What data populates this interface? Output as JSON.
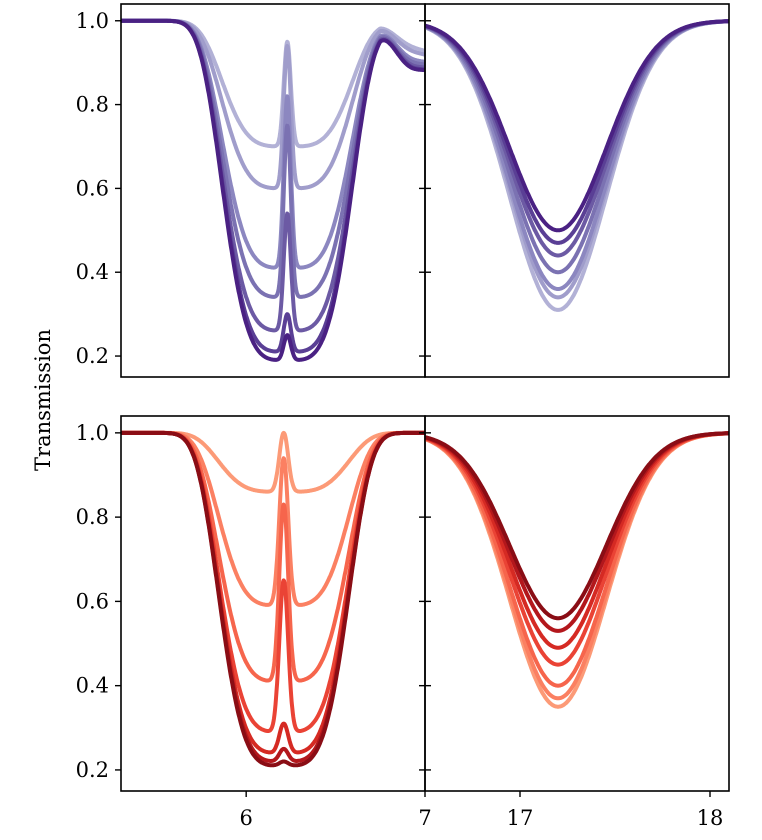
{
  "figure": {
    "ylabel": "Transmission"
  },
  "chart_data": [
    {
      "type": "line",
      "panel": "top-left",
      "xlim": [
        5.3,
        7.0
      ],
      "ylim": [
        0.15,
        1.04
      ],
      "yticks": [
        0.2,
        0.4,
        0.6,
        0.8,
        1.0
      ],
      "ytick_labels": [
        "0.2",
        "0.4",
        "0.6",
        "0.8",
        "1.0"
      ],
      "xticks": [],
      "xtick_labels": [],
      "center": 6.23,
      "line_half_width": 0.36,
      "side_bump_x": 6.9,
      "series": [
        {
          "name": "s1",
          "color": "#b2b1d6",
          "min_depth": 0.7,
          "center_value": 0.95
        },
        {
          "name": "s2",
          "color": "#a09dcb",
          "min_depth": 0.6,
          "center_value": 0.94
        },
        {
          "name": "s3",
          "color": "#8c87c0",
          "min_depth": 0.41,
          "center_value": 0.82
        },
        {
          "name": "s4",
          "color": "#7b72b2",
          "min_depth": 0.34,
          "center_value": 0.75
        },
        {
          "name": "s5",
          "color": "#6c5aa4",
          "min_depth": 0.26,
          "center_value": 0.54
        },
        {
          "name": "s6",
          "color": "#5a3f95",
          "min_depth": 0.21,
          "center_value": 0.3
        },
        {
          "name": "s7",
          "color": "#4a2183",
          "min_depth": 0.19,
          "center_value": 0.25
        }
      ]
    },
    {
      "type": "line",
      "panel": "top-right",
      "xlim": [
        16.5,
        18.1
      ],
      "ylim": [
        0.15,
        1.04
      ],
      "yticks": [
        0.2,
        0.4,
        0.6,
        0.8,
        1.0
      ],
      "ytick_labels": [],
      "xticks": [],
      "xtick_labels": [],
      "center": 17.2,
      "line_half_width": 0.3,
      "series": [
        {
          "name": "s1",
          "color": "#b2b1d6",
          "min_depth": 0.31
        },
        {
          "name": "s2",
          "color": "#a09dcb",
          "min_depth": 0.34
        },
        {
          "name": "s3",
          "color": "#8c87c0",
          "min_depth": 0.36
        },
        {
          "name": "s4",
          "color": "#7b72b2",
          "min_depth": 0.4
        },
        {
          "name": "s5",
          "color": "#6c5aa4",
          "min_depth": 0.44
        },
        {
          "name": "s6",
          "color": "#5a3f95",
          "min_depth": 0.47
        },
        {
          "name": "s7",
          "color": "#4a2183",
          "min_depth": 0.5
        }
      ]
    },
    {
      "type": "line",
      "panel": "bottom-left",
      "xlim": [
        5.3,
        7.0
      ],
      "ylim": [
        0.15,
        1.04
      ],
      "yticks": [
        0.2,
        0.4,
        0.6,
        0.8,
        1.0
      ],
      "ytick_labels": [
        "0.2",
        "0.4",
        "0.6",
        "0.8",
        "1.0"
      ],
      "xticks": [
        6,
        7
      ],
      "xtick_labels": [
        "6",
        "7"
      ],
      "center": 6.21,
      "line_half_width": 0.36,
      "series": [
        {
          "name": "s1",
          "color": "#fc9a77",
          "min_depth": 0.86,
          "center_value": 1.0
        },
        {
          "name": "s2",
          "color": "#fb8062",
          "min_depth": 0.59,
          "center_value": 0.94
        },
        {
          "name": "s3",
          "color": "#f6654c",
          "min_depth": 0.41,
          "center_value": 0.83
        },
        {
          "name": "s4",
          "color": "#ea4335",
          "min_depth": 0.29,
          "center_value": 0.65
        },
        {
          "name": "s5",
          "color": "#d52a23",
          "min_depth": 0.24,
          "center_value": 0.31
        },
        {
          "name": "s6",
          "color": "#b3171c",
          "min_depth": 0.22,
          "center_value": 0.25
        },
        {
          "name": "s7",
          "color": "#8a0d15",
          "min_depth": 0.21,
          "center_value": 0.22
        }
      ]
    },
    {
      "type": "line",
      "panel": "bottom-right",
      "xlim": [
        16.5,
        18.1
      ],
      "ylim": [
        0.15,
        1.04
      ],
      "yticks": [
        0.2,
        0.4,
        0.6,
        0.8,
        1.0
      ],
      "ytick_labels": [],
      "xticks": [
        17,
        18
      ],
      "xtick_labels": [
        "17",
        "18"
      ],
      "center": 17.2,
      "line_half_width": 0.3,
      "series": [
        {
          "name": "s1",
          "color": "#fc9a77",
          "min_depth": 0.35
        },
        {
          "name": "s2",
          "color": "#fb8062",
          "min_depth": 0.37
        },
        {
          "name": "s3",
          "color": "#f6654c",
          "min_depth": 0.4
        },
        {
          "name": "s4",
          "color": "#ea4335",
          "min_depth": 0.45
        },
        {
          "name": "s5",
          "color": "#d52a23",
          "min_depth": 0.49
        },
        {
          "name": "s6",
          "color": "#b3171c",
          "min_depth": 0.53
        },
        {
          "name": "s7",
          "color": "#8a0d15",
          "min_depth": 0.56
        }
      ]
    }
  ]
}
